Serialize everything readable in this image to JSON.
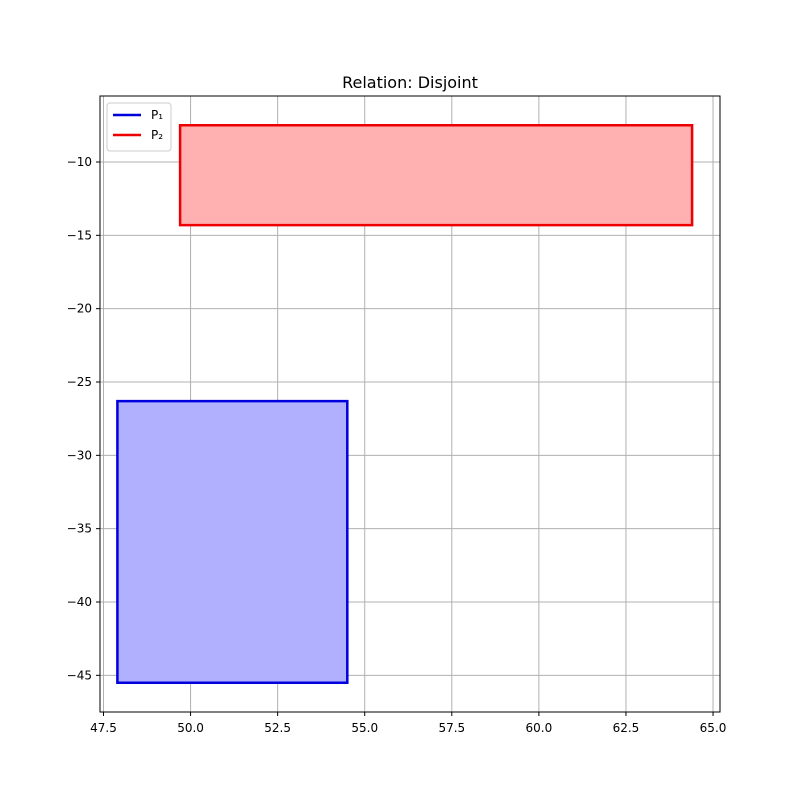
{
  "chart_data": {
    "type": "polygon",
    "title": "Relation: Disjoint",
    "xlabel": "",
    "ylabel": "",
    "xlim": [
      47.4,
      65.2
    ],
    "ylim": [
      -47.5,
      -5.5
    ],
    "xticks": [
      47.5,
      50.0,
      52.5,
      55.0,
      57.5,
      60.0,
      62.5,
      65.0
    ],
    "xtick_labels": [
      "47.5",
      "50.0",
      "52.5",
      "55.0",
      "57.5",
      "60.0",
      "62.5",
      "65.0"
    ],
    "yticks": [
      -10,
      -15,
      -20,
      -25,
      -30,
      -35,
      -40,
      -45
    ],
    "ytick_labels": [
      "−10",
      "−15",
      "−20",
      "−25",
      "−30",
      "−35",
      "−40",
      "−45"
    ],
    "grid": true,
    "legend_position": "upper-left",
    "series": [
      {
        "name": "P₁",
        "color": "#0000dd",
        "fill": "#b0b0ff",
        "points": [
          [
            47.9,
            -45.5
          ],
          [
            54.5,
            -45.5
          ],
          [
            54.5,
            -26.3
          ],
          [
            47.9,
            -26.3
          ]
        ]
      },
      {
        "name": "P₂",
        "color": "#ee0000",
        "fill": "#ffb0b0",
        "points": [
          [
            49.7,
            -14.3
          ],
          [
            64.4,
            -14.3
          ],
          [
            64.4,
            -7.5
          ],
          [
            49.7,
            -7.5
          ]
        ]
      }
    ]
  }
}
